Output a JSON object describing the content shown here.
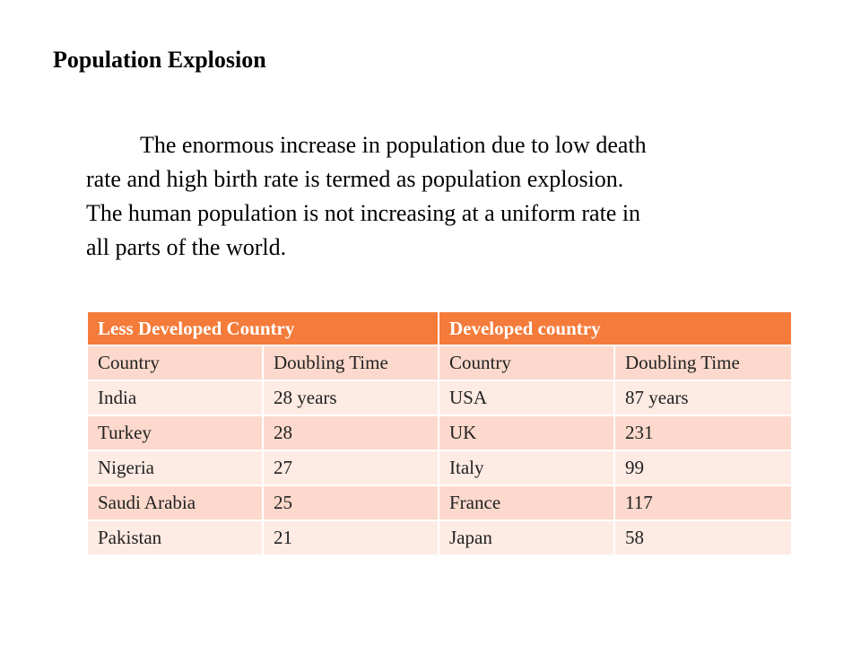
{
  "title": "Population Explosion",
  "paragraph": {
    "lines": [
      "The enormous increase in population due to low death",
      "rate and high birth rate is termed as population explosion.",
      "The human population is not increasing at a uniform rate in",
      "all parts of the world."
    ]
  },
  "table": {
    "header": {
      "less_developed": "Less Developed Country",
      "developed": "Developed country"
    },
    "rows": [
      [
        "Country",
        "Doubling Time",
        "Country",
        "Doubling Time"
      ],
      [
        "India",
        "28 years",
        "USA",
        "87 years"
      ],
      [
        "Turkey",
        "28",
        "UK",
        "231"
      ],
      [
        "Nigeria",
        "27",
        "Italy",
        "99"
      ],
      [
        "Saudi Arabia",
        "25",
        "France",
        "117"
      ],
      [
        "Pakistan",
        "21",
        "Japan",
        "58"
      ]
    ]
  },
  "colors": {
    "header_bg": "#f47b3a",
    "row_dark": "#fcd9cc",
    "row_light": "#fdebe4"
  }
}
